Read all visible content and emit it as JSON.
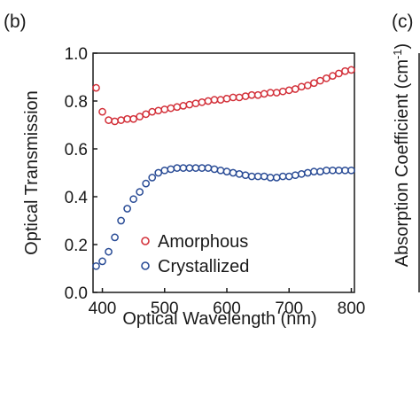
{
  "panels": {
    "left_label": "(b)",
    "right_label": "(c)"
  },
  "right_panel": {
    "ylabel": "Absorption Coefficient (cm",
    "ylabel_sup": "-1",
    "ylabel_end": ")"
  },
  "chart_data": {
    "type": "scatter",
    "xlabel": "Optical Wavelength (nm)",
    "ylabel": "Optical Transmission",
    "xlim": [
      385,
      805
    ],
    "ylim": [
      0.0,
      1.0
    ],
    "xticks": [
      400,
      500,
      600,
      700,
      800
    ],
    "yticks": [
      0.0,
      0.2,
      0.4,
      0.6,
      0.8,
      1.0
    ],
    "xtick_labels": [
      "400",
      "500",
      "600",
      "700",
      "800"
    ],
    "ytick_labels": [
      "0.0",
      "0.2",
      "0.4",
      "0.6",
      "0.8",
      "1.0"
    ],
    "grid": false,
    "legend_position": "lower-left",
    "marker": "open-circle",
    "series": [
      {
        "name": "Amorphous",
        "color": "#d3313a",
        "x": [
          390,
          400,
          410,
          420,
          430,
          440,
          450,
          460,
          470,
          480,
          490,
          500,
          510,
          520,
          530,
          540,
          550,
          560,
          570,
          580,
          590,
          600,
          610,
          620,
          630,
          640,
          650,
          660,
          670,
          680,
          690,
          700,
          710,
          720,
          730,
          740,
          750,
          760,
          770,
          780,
          790,
          800
        ],
        "y": [
          0.855,
          0.755,
          0.72,
          0.715,
          0.72,
          0.725,
          0.725,
          0.735,
          0.745,
          0.755,
          0.76,
          0.765,
          0.77,
          0.775,
          0.78,
          0.785,
          0.79,
          0.795,
          0.8,
          0.805,
          0.805,
          0.81,
          0.815,
          0.815,
          0.82,
          0.825,
          0.825,
          0.83,
          0.835,
          0.835,
          0.84,
          0.845,
          0.85,
          0.86,
          0.865,
          0.875,
          0.885,
          0.895,
          0.905,
          0.915,
          0.925,
          0.93
        ]
      },
      {
        "name": "Crystallized",
        "color": "#2a4c96",
        "x": [
          390,
          400,
          410,
          420,
          430,
          440,
          450,
          460,
          470,
          480,
          490,
          500,
          510,
          520,
          530,
          540,
          550,
          560,
          570,
          580,
          590,
          600,
          610,
          620,
          630,
          640,
          650,
          660,
          670,
          680,
          690,
          700,
          710,
          720,
          730,
          740,
          750,
          760,
          770,
          780,
          790,
          800
        ],
        "y": [
          0.11,
          0.13,
          0.17,
          0.23,
          0.3,
          0.35,
          0.39,
          0.42,
          0.455,
          0.48,
          0.5,
          0.51,
          0.515,
          0.52,
          0.52,
          0.52,
          0.52,
          0.52,
          0.52,
          0.515,
          0.51,
          0.505,
          0.5,
          0.495,
          0.49,
          0.485,
          0.485,
          0.485,
          0.48,
          0.48,
          0.485,
          0.485,
          0.49,
          0.495,
          0.5,
          0.505,
          0.505,
          0.51,
          0.51,
          0.51,
          0.51,
          0.51
        ]
      }
    ]
  }
}
